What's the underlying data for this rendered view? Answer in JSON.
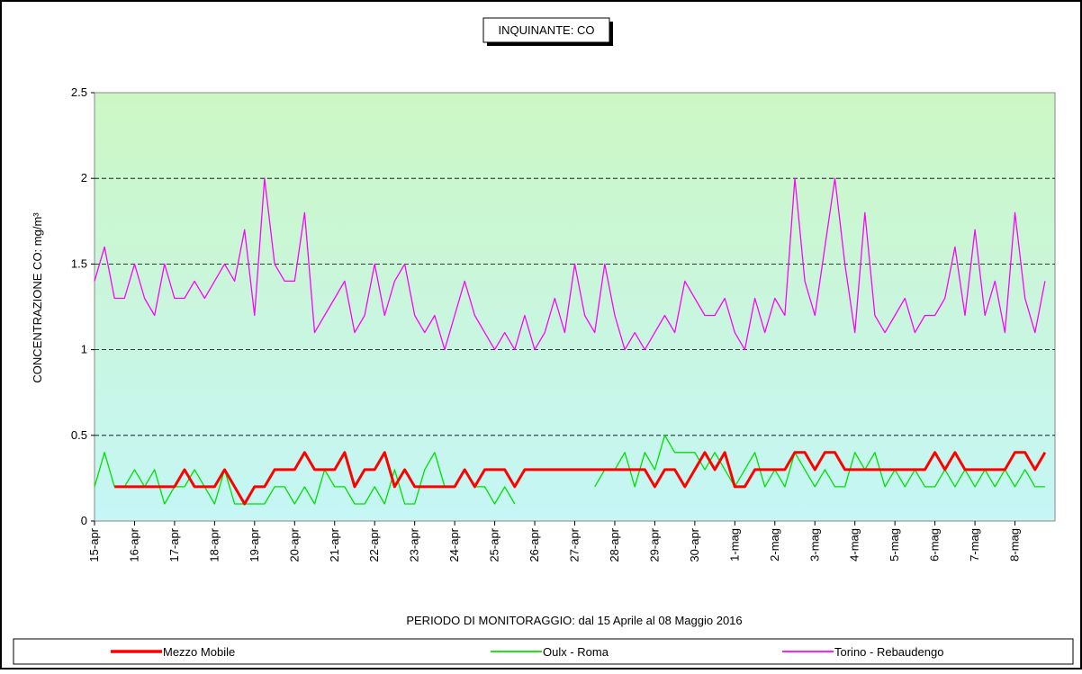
{
  "chart_data": {
    "type": "line",
    "title": "INQUINANTE: CO",
    "y_label": "CONCENTRAZIONE CO: mg/m³",
    "x_label": "PERIODO DI MONITORAGGIO: dal 15 Aprile al 08 Maggio 2016",
    "xlim": [
      0,
      24
    ],
    "ylim": [
      0,
      2.5
    ],
    "yticks": [
      0,
      0.5,
      1,
      1.5,
      2,
      2.5
    ],
    "xticks": [
      {
        "value": 0,
        "label": "15-apr"
      },
      {
        "value": 1,
        "label": "16-apr"
      },
      {
        "value": 2,
        "label": "17-apr"
      },
      {
        "value": 3,
        "label": "18-apr"
      },
      {
        "value": 4,
        "label": "19-apr"
      },
      {
        "value": 5,
        "label": "20-apr"
      },
      {
        "value": 6,
        "label": "21-apr"
      },
      {
        "value": 7,
        "label": "22-apr"
      },
      {
        "value": 8,
        "label": "23-apr"
      },
      {
        "value": 9,
        "label": "24-apr"
      },
      {
        "value": 10,
        "label": "25-apr"
      },
      {
        "value": 11,
        "label": "26-apr"
      },
      {
        "value": 12,
        "label": "27-apr"
      },
      {
        "value": 13,
        "label": "28-apr"
      },
      {
        "value": 14,
        "label": "29-apr"
      },
      {
        "value": 15,
        "label": "30-apr"
      },
      {
        "value": 16,
        "label": "1-mag"
      },
      {
        "value": 17,
        "label": "2-mag"
      },
      {
        "value": 18,
        "label": "3-mag"
      },
      {
        "value": 19,
        "label": "4-mag"
      },
      {
        "value": 20,
        "label": "5-mag"
      },
      {
        "value": 21,
        "label": "6-mag"
      },
      {
        "value": 22,
        "label": "7-mag"
      },
      {
        "value": 23,
        "label": "8-mag"
      }
    ],
    "grid": true,
    "legend": "bottom",
    "x": [
      0,
      0.25,
      0.5,
      0.75,
      1,
      1.25,
      1.5,
      1.75,
      2,
      2.25,
      2.5,
      2.75,
      3,
      3.25,
      3.5,
      3.75,
      4,
      4.25,
      4.5,
      4.75,
      5,
      5.25,
      5.5,
      5.75,
      6,
      6.25,
      6.5,
      6.75,
      7,
      7.25,
      7.5,
      7.75,
      8,
      8.25,
      8.5,
      8.75,
      9,
      9.25,
      9.5,
      9.75,
      10,
      10.25,
      10.5,
      10.75,
      11,
      11.25,
      11.5,
      11.75,
      12,
      12.25,
      12.5,
      12.75,
      13,
      13.25,
      13.5,
      13.75,
      14,
      14.25,
      14.5,
      14.75,
      15,
      15.25,
      15.5,
      15.75,
      16,
      16.25,
      16.5,
      16.75,
      17,
      17.25,
      17.5,
      17.75,
      18,
      18.25,
      18.5,
      18.75,
      19,
      19.25,
      19.5,
      19.75,
      20,
      20.25,
      20.5,
      20.75,
      21,
      21.25,
      21.5,
      21.75,
      22,
      22.25,
      22.5,
      22.75,
      23,
      23.25,
      23.5,
      23.75
    ],
    "series": [
      {
        "name": "Mezzo Mobile",
        "color": "#ff0000",
        "width": 3,
        "values": [
          null,
          null,
          0.2,
          0.2,
          0.2,
          0.2,
          0.2,
          0.2,
          0.2,
          0.3,
          0.2,
          0.2,
          0.2,
          0.3,
          0.2,
          0.1,
          0.2,
          0.2,
          0.3,
          0.3,
          0.3,
          0.4,
          0.3,
          0.3,
          0.3,
          0.4,
          0.2,
          0.3,
          0.3,
          0.4,
          0.2,
          0.3,
          0.2,
          0.2,
          0.2,
          0.2,
          0.2,
          0.3,
          0.2,
          0.3,
          0.3,
          0.3,
          0.2,
          0.3,
          0.3,
          0.3,
          0.3,
          0.3,
          0.3,
          0.3,
          0.3,
          0.3,
          0.3,
          0.3,
          0.3,
          0.3,
          0.2,
          0.3,
          0.3,
          0.2,
          0.3,
          0.4,
          0.3,
          0.4,
          0.2,
          0.2,
          0.3,
          0.3,
          0.3,
          0.3,
          0.4,
          0.4,
          0.3,
          0.4,
          0.4,
          0.3,
          0.3,
          0.3,
          0.3,
          0.3,
          0.3,
          0.3,
          0.3,
          0.3,
          0.4,
          0.3,
          0.4,
          0.3,
          0.3,
          0.3,
          0.3,
          0.3,
          0.4,
          0.4,
          0.3,
          0.4
        ]
      },
      {
        "name": "Oulx - Roma",
        "color": "#00e000",
        "width": 1.3,
        "values": [
          0.2,
          0.4,
          0.2,
          0.2,
          0.3,
          0.2,
          0.3,
          0.1,
          0.2,
          0.2,
          0.3,
          0.2,
          0.1,
          0.3,
          0.1,
          0.1,
          0.1,
          0.1,
          0.2,
          0.2,
          0.1,
          0.2,
          0.1,
          0.3,
          0.2,
          0.2,
          0.1,
          0.1,
          0.2,
          0.1,
          0.3,
          0.1,
          0.1,
          0.3,
          0.4,
          0.2,
          0.2,
          0.3,
          0.2,
          0.2,
          0.1,
          0.2,
          0.1,
          null,
          null,
          null,
          null,
          null,
          null,
          null,
          0.2,
          0.3,
          0.3,
          0.4,
          0.2,
          0.4,
          0.3,
          0.5,
          0.4,
          0.4,
          0.4,
          0.3,
          0.4,
          0.3,
          0.2,
          0.3,
          0.4,
          0.2,
          0.3,
          0.2,
          0.4,
          0.3,
          0.2,
          0.3,
          0.2,
          0.2,
          0.4,
          0.3,
          0.4,
          0.2,
          0.3,
          0.2,
          0.3,
          0.2,
          0.2,
          0.3,
          0.2,
          0.3,
          0.2,
          0.3,
          0.2,
          0.3,
          0.2,
          0.3,
          0.2,
          0.2
        ]
      },
      {
        "name": "Torino - Rebaudengo",
        "color": "#ff00ff",
        "width": 1.3,
        "values": [
          1.4,
          1.6,
          1.3,
          1.3,
          1.5,
          1.3,
          1.2,
          1.5,
          1.3,
          1.3,
          1.4,
          1.3,
          1.4,
          1.5,
          1.4,
          1.7,
          1.2,
          2.0,
          1.5,
          1.4,
          1.4,
          1.8,
          1.1,
          1.2,
          1.3,
          1.4,
          1.1,
          1.2,
          1.5,
          1.2,
          1.4,
          1.5,
          1.2,
          1.1,
          1.2,
          1.0,
          1.2,
          1.4,
          1.2,
          1.1,
          1.0,
          1.1,
          1.0,
          1.2,
          1.0,
          1.1,
          1.3,
          1.1,
          1.5,
          1.2,
          1.1,
          1.5,
          1.2,
          1.0,
          1.1,
          1.0,
          1.1,
          1.2,
          1.1,
          1.4,
          1.3,
          1.2,
          1.2,
          1.3,
          1.1,
          1.0,
          1.3,
          1.1,
          1.3,
          1.2,
          2.0,
          1.4,
          1.2,
          1.6,
          2.0,
          1.5,
          1.1,
          1.8,
          1.2,
          1.1,
          1.2,
          1.3,
          1.1,
          1.2,
          1.2,
          1.3,
          1.6,
          1.2,
          1.7,
          1.2,
          1.4,
          1.1,
          1.8,
          1.3,
          1.1,
          1.4
        ]
      }
    ]
  }
}
